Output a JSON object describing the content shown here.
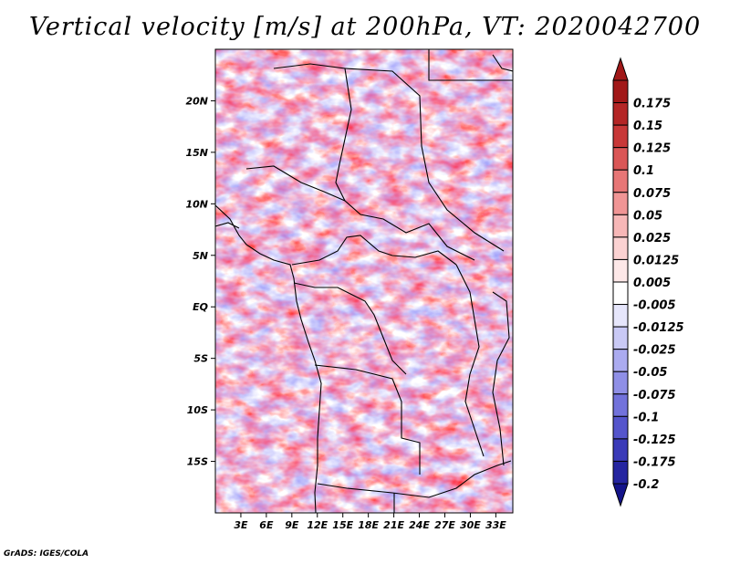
{
  "title": "Vertical velocity [m/s] at 200hPa, VT: 2020042700",
  "credit": "GrADS: IGES/COLA",
  "map": {
    "lon_range": [
      0,
      35
    ],
    "lat_range": [
      -20,
      25
    ],
    "lat_ticks": [
      {
        "label": "20N",
        "lat": 20
      },
      {
        "label": "15N",
        "lat": 15
      },
      {
        "label": "10N",
        "lat": 10
      },
      {
        "label": "5N",
        "lat": 5
      },
      {
        "label": "EQ",
        "lat": 0
      },
      {
        "label": "5S",
        "lat": -5
      },
      {
        "label": "10S",
        "lat": -10
      },
      {
        "label": "15S",
        "lat": -15
      }
    ],
    "lon_ticks": [
      {
        "label": "3E",
        "lon": 3
      },
      {
        "label": "6E",
        "lon": 6
      },
      {
        "label": "9E",
        "lon": 9
      },
      {
        "label": "12E",
        "lon": 12
      },
      {
        "label": "15E",
        "lon": 15
      },
      {
        "label": "18E",
        "lon": 18
      },
      {
        "label": "21E",
        "lon": 21
      },
      {
        "label": "24E",
        "lon": 24
      },
      {
        "label": "27E",
        "lon": 27
      },
      {
        "label": "30E",
        "lon": 30
      },
      {
        "label": "33E",
        "lon": 33
      }
    ]
  },
  "colorbar": {
    "levels": [
      {
        "label": "0.175",
        "color": "#a11818"
      },
      {
        "label": "0.15",
        "color": "#b42626"
      },
      {
        "label": "0.125",
        "color": "#c83838"
      },
      {
        "label": "0.1",
        "color": "#da5656"
      },
      {
        "label": "0.075",
        "color": "#e77676"
      },
      {
        "label": "0.05",
        "color": "#f09595"
      },
      {
        "label": "0.025",
        "color": "#f7b7b7"
      },
      {
        "label": "0.0125",
        "color": "#fbd2d2"
      },
      {
        "label": "0.005",
        "color": "#fde8e8"
      },
      {
        "label": "-0.005",
        "color": "#ffffff"
      },
      {
        "label": "-0.0125",
        "color": "#e6e6fb"
      },
      {
        "label": "-0.025",
        "color": "#c9c9f5"
      },
      {
        "label": "-0.05",
        "color": "#ababf0"
      },
      {
        "label": "-0.075",
        "color": "#8f8fe6"
      },
      {
        "label": "-0.1",
        "color": "#7272db"
      },
      {
        "label": "-0.125",
        "color": "#5555cc"
      },
      {
        "label": "-0.175",
        "color": "#3a3ab8"
      },
      {
        "label": "-0.2",
        "color": "#2525a0"
      }
    ],
    "top_color": "#a11818",
    "bottom_color": "#14148a"
  }
}
